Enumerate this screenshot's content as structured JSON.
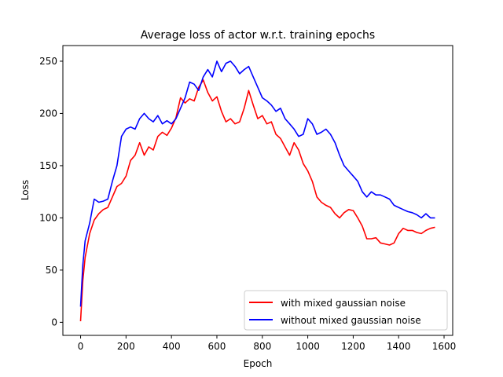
{
  "chart_data": {
    "type": "line",
    "title": "Average loss of actor w.r.t. training epochs",
    "xlabel": "Epoch",
    "ylabel": "Loss",
    "xlim": [
      -78,
      1638
    ],
    "ylim": [
      -12.5,
      265
    ],
    "xticks": [
      0,
      200,
      400,
      600,
      800,
      1000,
      1200,
      1400,
      1600
    ],
    "yticks": [
      0,
      50,
      100,
      150,
      200,
      250
    ],
    "grid": false,
    "legend_position": "lower right",
    "series": [
      {
        "name": "with mixed gaussian noise",
        "color": "#ff0000",
        "x": [
          0,
          10,
          20,
          40,
          60,
          80,
          100,
          120,
          140,
          160,
          180,
          200,
          220,
          240,
          260,
          280,
          300,
          320,
          340,
          360,
          380,
          400,
          420,
          440,
          460,
          480,
          500,
          520,
          540,
          560,
          580,
          600,
          620,
          640,
          660,
          680,
          700,
          720,
          740,
          760,
          780,
          800,
          820,
          840,
          860,
          880,
          900,
          920,
          940,
          960,
          980,
          1000,
          1020,
          1040,
          1060,
          1080,
          1100,
          1120,
          1140,
          1160,
          1180,
          1200,
          1220,
          1240,
          1260,
          1280,
          1300,
          1320,
          1340,
          1360,
          1380,
          1400,
          1420,
          1440,
          1460,
          1480,
          1500,
          1520,
          1540,
          1560
        ],
        "y": [
          1,
          40,
          62,
          85,
          98,
          104,
          108,
          110,
          120,
          130,
          133,
          140,
          155,
          160,
          172,
          160,
          168,
          165,
          178,
          182,
          179,
          186,
          196,
          215,
          210,
          214,
          212,
          225,
          232,
          220,
          212,
          216,
          202,
          192,
          195,
          190,
          192,
          205,
          222,
          208,
          195,
          198,
          190,
          192,
          180,
          176,
          168,
          160,
          172,
          165,
          152,
          145,
          135,
          120,
          115,
          112,
          110,
          104,
          100,
          105,
          108,
          107,
          100,
          92,
          80,
          80,
          81,
          76,
          75,
          74,
          76,
          85,
          90,
          88,
          88,
          86,
          85,
          88,
          90,
          91
        ]
      },
      {
        "name": "without mixed gaussian noise",
        "color": "#0000ff",
        "x": [
          0,
          10,
          20,
          40,
          60,
          80,
          100,
          120,
          140,
          160,
          180,
          200,
          220,
          240,
          260,
          280,
          300,
          320,
          340,
          360,
          380,
          400,
          420,
          440,
          460,
          480,
          500,
          520,
          540,
          560,
          580,
          600,
          620,
          640,
          660,
          680,
          700,
          720,
          740,
          760,
          780,
          800,
          820,
          840,
          860,
          880,
          900,
          920,
          940,
          960,
          980,
          1000,
          1020,
          1040,
          1060,
          1080,
          1100,
          1120,
          1140,
          1160,
          1180,
          1200,
          1220,
          1240,
          1260,
          1280,
          1300,
          1320,
          1340,
          1360,
          1380,
          1400,
          1420,
          1440,
          1460,
          1480,
          1500,
          1520,
          1540,
          1560
        ],
        "y": [
          15,
          55,
          78,
          95,
          118,
          115,
          116,
          118,
          135,
          150,
          178,
          185,
          187,
          185,
          195,
          200,
          195,
          192,
          198,
          190,
          193,
          190,
          195,
          205,
          215,
          230,
          228,
          222,
          235,
          242,
          235,
          250,
          240,
          248,
          250,
          245,
          238,
          242,
          245,
          235,
          225,
          215,
          212,
          208,
          202,
          205,
          195,
          190,
          185,
          178,
          180,
          195,
          190,
          180,
          182,
          185,
          180,
          172,
          160,
          150,
          145,
          140,
          135,
          125,
          120,
          125,
          122,
          122,
          120,
          118,
          112,
          110,
          108,
          106,
          105,
          103,
          100,
          104,
          100,
          100
        ]
      }
    ]
  }
}
